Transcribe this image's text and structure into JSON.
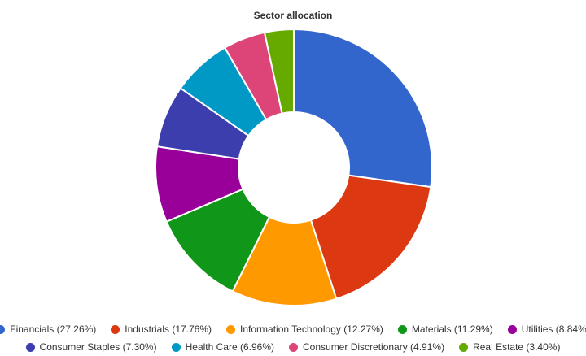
{
  "chart_data": {
    "type": "pie",
    "donut": true,
    "title": "Sector allocation",
    "legend_position": "bottom",
    "slices": [
      {
        "label": "Financials",
        "value": 27.26,
        "color": "#3366cc",
        "legend_text": "Financials (27.26%)"
      },
      {
        "label": "Industrials",
        "value": 17.76,
        "color": "#dc3912",
        "legend_text": "Industrials (17.76%)"
      },
      {
        "label": "Information Technology",
        "value": 12.27,
        "color": "#ff9900",
        "legend_text": "Information Technology (12.27%)"
      },
      {
        "label": "Materials",
        "value": 11.29,
        "color": "#109618",
        "legend_text": "Materials (11.29%)"
      },
      {
        "label": "Utilities",
        "value": 8.84,
        "color": "#990099",
        "legend_text": "Utilities (8.84%)"
      },
      {
        "label": "Consumer Staples",
        "value": 7.3,
        "color": "#3b3eac",
        "legend_text": "Consumer Staples (7.30%)"
      },
      {
        "label": "Health Care",
        "value": 6.96,
        "color": "#0099c6",
        "legend_text": "Health Care (6.96%)"
      },
      {
        "label": "Consumer Discretionary",
        "value": 4.91,
        "color": "#dd4477",
        "legend_text": "Consumer Discretionary (4.91%)"
      },
      {
        "label": "Real Estate",
        "value": 3.4,
        "color": "#66aa00",
        "legend_text": "Real Estate (3.40%)"
      }
    ]
  }
}
